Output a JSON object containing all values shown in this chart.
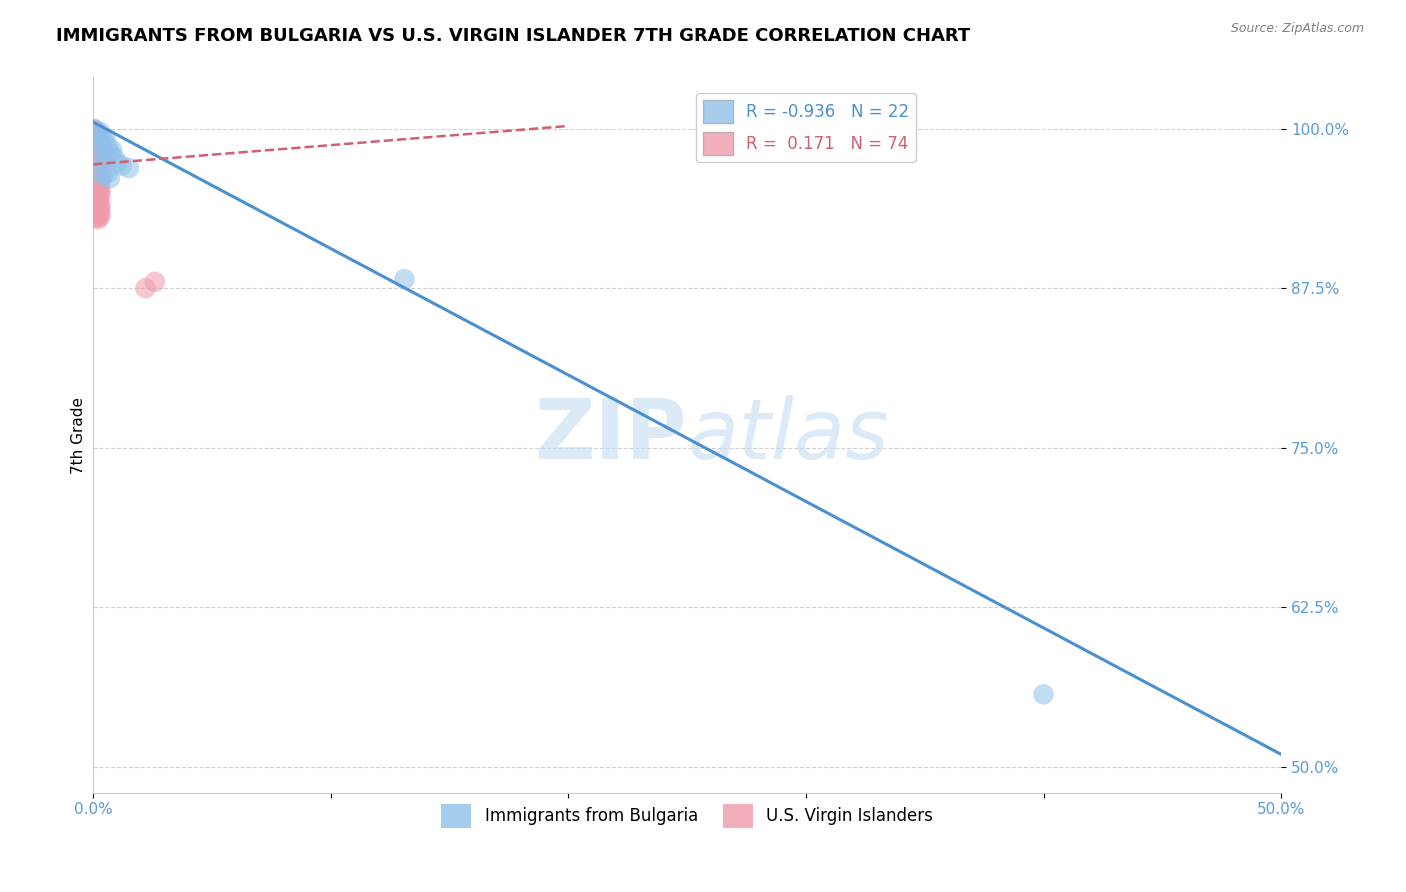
{
  "title": "IMMIGRANTS FROM BULGARIA VS U.S. VIRGIN ISLANDER 7TH GRADE CORRELATION CHART",
  "source": "Source: ZipAtlas.com",
  "ylabel": "7th Grade",
  "xlim": [
    0.0,
    0.5
  ],
  "ylim": [
    0.48,
    1.04
  ],
  "xticks": [
    0.0,
    0.1,
    0.2,
    0.3,
    0.4,
    0.5
  ],
  "xticklabels": [
    "0.0%",
    "",
    "",
    "",
    "",
    "50.0%"
  ],
  "yticks": [
    0.5,
    0.625,
    0.75,
    0.875,
    1.0
  ],
  "yticklabels": [
    "50.0%",
    "62.5%",
    "75.0%",
    "87.5%",
    "100.0%"
  ],
  "blue_R": -0.936,
  "blue_N": 22,
  "pink_R": 0.171,
  "pink_N": 74,
  "blue_color": "#90c0ea",
  "pink_color": "#f09aaa",
  "blue_line_color": "#4a90d0",
  "pink_line_color": "#d06070",
  "watermark_zip": "ZIP",
  "watermark_atlas": "atlas",
  "legend_blue_label": "Immigrants from Bulgaria",
  "legend_pink_label": "U.S. Virgin Islanders",
  "blue_scatter_x": [
    0.001,
    0.003,
    0.002,
    0.005,
    0.004,
    0.003,
    0.006,
    0.004,
    0.008,
    0.007,
    0.005,
    0.009,
    0.003,
    0.01,
    0.012,
    0.015,
    0.002,
    0.006,
    0.004,
    0.131,
    0.007,
    0.4
  ],
  "blue_scatter_y": [
    0.999,
    0.997,
    0.995,
    0.993,
    0.991,
    0.989,
    0.987,
    0.985,
    0.983,
    0.981,
    0.979,
    0.977,
    0.975,
    0.973,
    0.971,
    0.969,
    0.967,
    0.965,
    0.963,
    0.882,
    0.961,
    0.557
  ],
  "pink_scatter_x": [
    0.0,
    0.0,
    0.001,
    0.0,
    0.001,
    0.002,
    0.001,
    0.0,
    0.001,
    0.002,
    0.0,
    0.001,
    0.0,
    0.002,
    0.001,
    0.003,
    0.002,
    0.001,
    0.0,
    0.002,
    0.003,
    0.001,
    0.002,
    0.0,
    0.001,
    0.002,
    0.003,
    0.001,
    0.002,
    0.003,
    0.001,
    0.002,
    0.001,
    0.003,
    0.002,
    0.0,
    0.001,
    0.002,
    0.003,
    0.001,
    0.002,
    0.003,
    0.0,
    0.001,
    0.002,
    0.002,
    0.001,
    0.003,
    0.001,
    0.002,
    0.003,
    0.002,
    0.001,
    0.003,
    0.002,
    0.001,
    0.0,
    0.001,
    0.002,
    0.003,
    0.001,
    0.002,
    0.003,
    0.002,
    0.001,
    0.002,
    0.003,
    0.001,
    0.002,
    0.003,
    0.022,
    0.026,
    0.001,
    0.002
  ],
  "pink_scatter_y": [
    1.0,
    0.999,
    0.998,
    0.997,
    0.996,
    0.995,
    0.994,
    0.993,
    0.992,
    0.991,
    0.99,
    0.989,
    0.988,
    0.987,
    0.986,
    0.985,
    0.984,
    0.983,
    0.982,
    0.981,
    0.98,
    0.979,
    0.978,
    0.977,
    0.976,
    0.975,
    0.974,
    0.973,
    0.972,
    0.971,
    0.97,
    0.969,
    0.968,
    0.967,
    0.966,
    0.965,
    0.964,
    0.963,
    0.962,
    0.961,
    0.96,
    0.959,
    0.958,
    0.957,
    0.956,
    0.955,
    0.954,
    0.953,
    0.952,
    0.951,
    0.95,
    0.949,
    0.948,
    0.947,
    0.946,
    0.945,
    0.944,
    0.943,
    0.942,
    0.941,
    0.94,
    0.939,
    0.938,
    0.937,
    0.936,
    0.935,
    0.934,
    0.933,
    0.932,
    0.931,
    0.875,
    0.88,
    0.93,
    0.929
  ],
  "blue_line_x": [
    0.0,
    0.5
  ],
  "blue_line_y": [
    1.005,
    0.51
  ],
  "pink_line_x": [
    0.0,
    0.2
  ],
  "pink_line_y": [
    0.972,
    1.002
  ],
  "grid_color": "#cccccc",
  "background_color": "#ffffff",
  "title_fontsize": 13,
  "axis_label_fontsize": 11,
  "tick_fontsize": 11,
  "tick_color": "#5b9bd5",
  "legend_fontsize": 12
}
